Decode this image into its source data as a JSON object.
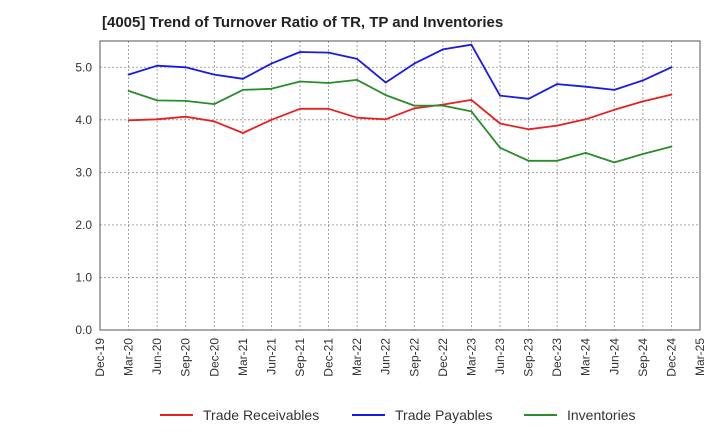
{
  "chart_data": {
    "type": "line",
    "title": "[4005]  Trend of Turnover Ratio of TR, TP and Inventories",
    "xlabel": "",
    "ylabel": "",
    "ylim": [
      0,
      5.5
    ],
    "y_ticks": [
      "0.0",
      "1.0",
      "2.0",
      "3.0",
      "4.0",
      "5.0"
    ],
    "grid": true,
    "legend_position": "bottom",
    "categories": [
      "Dec-19",
      "Mar-20",
      "Jun-20",
      "Sep-20",
      "Dec-20",
      "Mar-21",
      "Jun-21",
      "Sep-21",
      "Dec-21",
      "Mar-22",
      "Jun-22",
      "Sep-22",
      "Dec-22",
      "Mar-23",
      "Jun-23",
      "Sep-23",
      "Dec-23",
      "Mar-24",
      "Jun-24",
      "Sep-24",
      "Dec-24",
      "Mar-25"
    ],
    "series": [
      {
        "name": "Trade Receivables",
        "color": "#e8201f",
        "values": [
          null,
          3.99,
          4.01,
          4.06,
          3.97,
          3.75,
          4.0,
          4.21,
          4.21,
          4.04,
          4.01,
          4.22,
          4.29,
          4.38,
          3.93,
          3.82,
          3.89,
          4.01,
          4.19,
          4.35,
          4.48,
          null
        ]
      },
      {
        "name": "Trade Payables",
        "color": "#1a1ae6",
        "values": [
          null,
          4.86,
          5.03,
          5.0,
          4.86,
          4.78,
          5.07,
          5.29,
          5.28,
          5.16,
          4.71,
          5.07,
          5.34,
          5.43,
          4.46,
          4.4,
          4.68,
          4.63,
          4.57,
          4.75,
          5.0,
          null
        ]
      },
      {
        "name": "Inventories",
        "color": "#2a8c2a",
        "values": [
          null,
          4.55,
          4.37,
          4.36,
          4.3,
          4.57,
          4.59,
          4.73,
          4.7,
          4.76,
          4.47,
          4.27,
          4.27,
          4.16,
          3.47,
          3.22,
          3.22,
          3.37,
          3.19,
          3.35,
          3.49,
          null
        ]
      }
    ]
  }
}
